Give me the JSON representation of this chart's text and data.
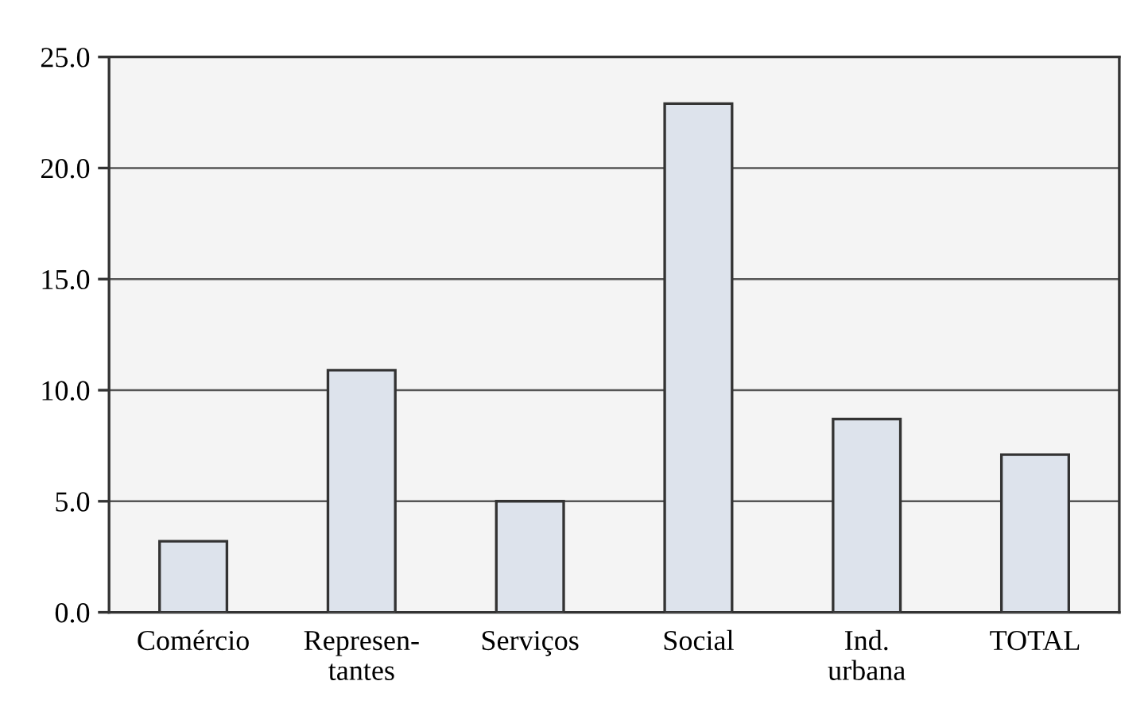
{
  "chart_data": {
    "type": "bar",
    "categories": [
      "Comércio",
      "Represen-\ntantes",
      "Serviços",
      "Social",
      "Ind.\nurbana",
      "TOTAL"
    ],
    "values": [
      3.2,
      10.9,
      5.0,
      22.9,
      8.7,
      7.1
    ],
    "color": "#dde3ec",
    "ylim": [
      0,
      25
    ],
    "yticks": [
      {
        "value": 0,
        "label": "0.0"
      },
      {
        "value": 5,
        "label": "5.0"
      },
      {
        "value": 10,
        "label": "10.0"
      },
      {
        "value": 15,
        "label": "15.0"
      },
      {
        "value": 20,
        "label": "20.0"
      },
      {
        "value": 25,
        "label": "25.0"
      }
    ],
    "grid": "y",
    "legend": false
  }
}
